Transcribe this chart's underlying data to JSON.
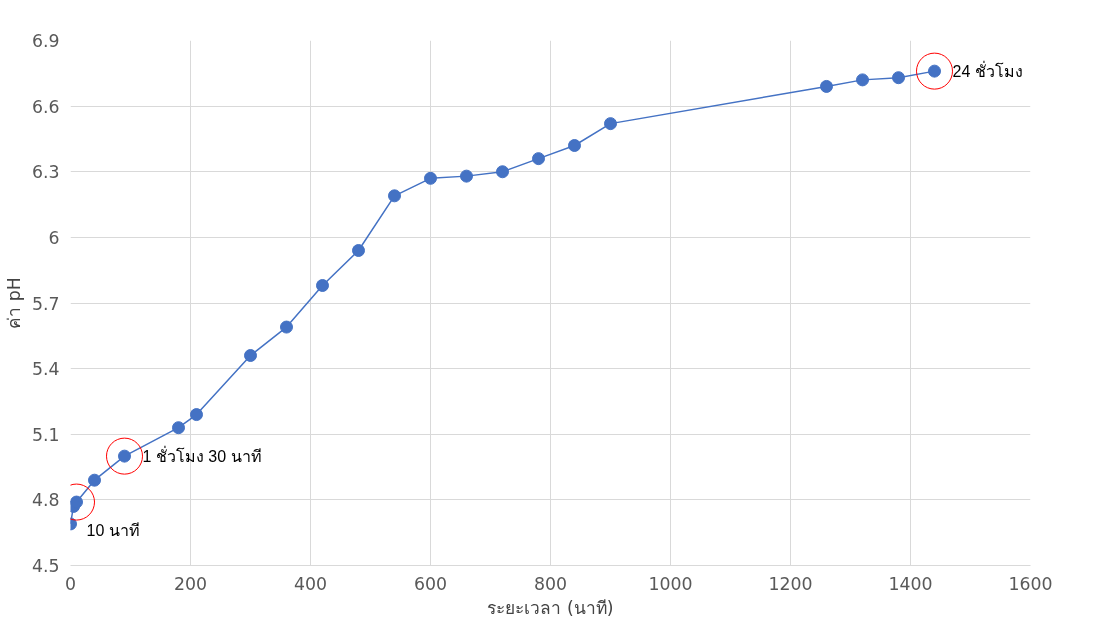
{
  "chart_data": {
    "type": "line",
    "xlabel": "ระยะเวลา (นาที)",
    "ylabel": "ค่า pH",
    "x": [
      0,
      5,
      10,
      40,
      90,
      180,
      210,
      300,
      360,
      420,
      480,
      540,
      600,
      660,
      720,
      780,
      840,
      900,
      1260,
      1320,
      1380,
      1440
    ],
    "series": [
      {
        "color": "#4472c4",
        "values": [
          4.69,
          4.77,
          4.79,
          4.89,
          5.0,
          5.13,
          5.19,
          5.46,
          5.59,
          5.78,
          5.94,
          6.19,
          6.27,
          6.28,
          6.3,
          6.36,
          6.42,
          6.52,
          6.69,
          6.72,
          6.73,
          6.76
        ]
      }
    ],
    "xlim": [
      0,
      1600
    ],
    "xticks": [
      0,
      200,
      400,
      600,
      800,
      1000,
      1200,
      1400,
      1600
    ],
    "ylim": [
      4.5,
      6.9
    ],
    "yticks": [
      4.5,
      4.8,
      5.1,
      5.4,
      5.7,
      6,
      6.3,
      6.6,
      6.9
    ],
    "grid": true,
    "marker": "circle",
    "line_style": "solid",
    "annotations": [
      {
        "text": "10 นาที",
        "x": 10,
        "y": 4.79
      },
      {
        "text": "1 ชั่วโมง 30 นาที",
        "x": 90,
        "y": 5.0
      },
      {
        "text": "24 ชั่วโมง",
        "x": 1440,
        "y": 6.76
      }
    ]
  }
}
